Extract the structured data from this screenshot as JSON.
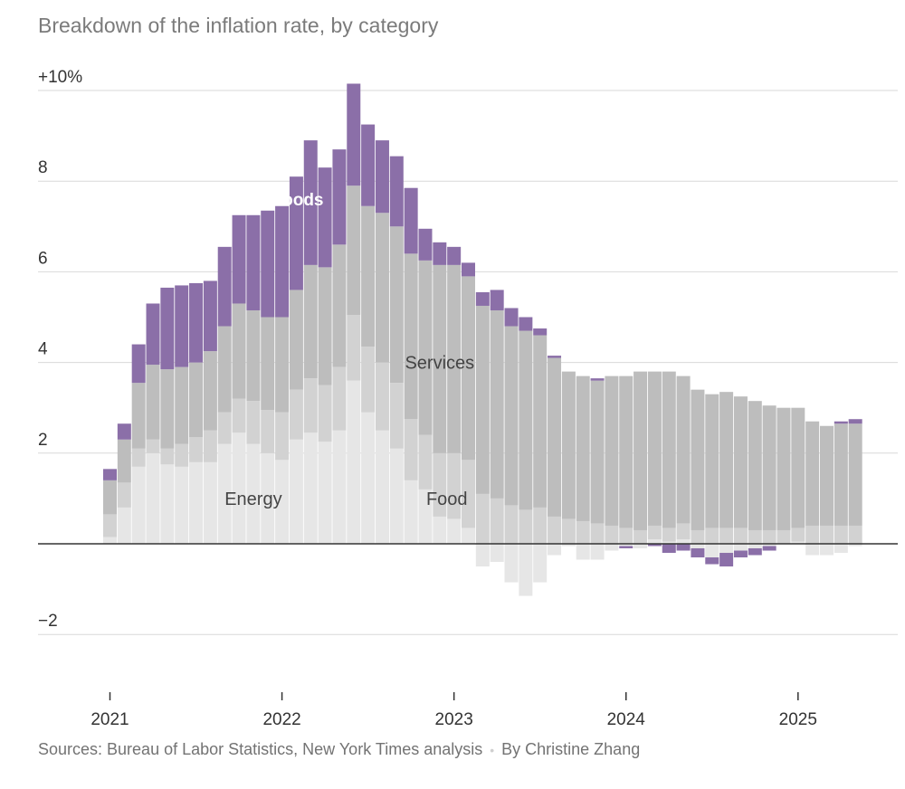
{
  "title": "Breakdown of the inflation rate, by category",
  "footer": {
    "sources": "Sources: Bureau of Labor Statistics, New York Times analysis",
    "separator": "•",
    "byline": "By Christine Zhang"
  },
  "colors": {
    "goods": "#8b6fa8",
    "services": "#bdbdbd",
    "energy": "#e6e6e6",
    "food": "#d2d2d2",
    "grid": "#d9d9d9",
    "zero": "#333333",
    "axis_text": "#333333"
  },
  "chart_data": {
    "type": "bar",
    "stacked": true,
    "title": "Breakdown of the inflation rate, by category",
    "ylabel": "",
    "xlabel": "",
    "ylim": [
      -3,
      10
    ],
    "y_ticks": [
      {
        "value": 10,
        "label": "+10%"
      },
      {
        "value": 8,
        "label": "8"
      },
      {
        "value": 6,
        "label": "6"
      },
      {
        "value": 4,
        "label": "4"
      },
      {
        "value": 2,
        "label": "2"
      },
      {
        "value": -2,
        "label": "−2"
      }
    ],
    "x_ticks": [
      {
        "index": 0,
        "label": "2021"
      },
      {
        "index": 12,
        "label": "2022"
      },
      {
        "index": 24,
        "label": "2023"
      },
      {
        "index": 36,
        "label": "2024"
      },
      {
        "index": 48,
        "label": "2025"
      }
    ],
    "series_labels": [
      {
        "name": "Goods",
        "text": "Goods",
        "index": 13,
        "value": 7.6
      },
      {
        "name": "Services",
        "text": "Services",
        "index": 23,
        "value": 4.0
      },
      {
        "name": "Energy",
        "text": "Energy",
        "index": 10,
        "value": 1.0
      },
      {
        "name": "Food",
        "text": "Food",
        "index": 23.5,
        "value": 1.0
      }
    ],
    "categories": [
      "Jan 2021",
      "Feb 2021",
      "Mar 2021",
      "Apr 2021",
      "May 2021",
      "Jun 2021",
      "Jul 2021",
      "Aug 2021",
      "Sep 2021",
      "Oct 2021",
      "Nov 2021",
      "Dec 2021",
      "Jan 2022",
      "Feb 2022",
      "Mar 2022",
      "Apr 2022",
      "May 2022",
      "Jun 2022",
      "Jul 2022",
      "Aug 2022",
      "Sep 2022",
      "Oct 2022",
      "Nov 2022",
      "Dec 2022",
      "Jan 2023",
      "Feb 2023",
      "Mar 2023",
      "Apr 2023",
      "May 2023",
      "Jun 2023",
      "Jul 2023",
      "Aug 2023",
      "Sep 2023",
      "Oct 2023",
      "Nov 2023",
      "Dec 2023",
      "Jan 2024",
      "Feb 2024",
      "Mar 2024",
      "Apr 2024",
      "May 2024",
      "Jun 2024",
      "Jul 2024",
      "Aug 2024",
      "Sep 2024",
      "Oct 2024",
      "Nov 2024",
      "Dec 2024",
      "Jan 2025",
      "Feb 2025",
      "Mar 2025",
      "Apr 2025",
      "May 2025"
    ],
    "series": [
      {
        "name": "Energy",
        "color_key": "energy",
        "values": [
          0.15,
          0.8,
          1.7,
          2.0,
          1.75,
          1.7,
          1.8,
          1.8,
          2.2,
          2.45,
          2.2,
          2.0,
          1.85,
          2.3,
          2.45,
          2.25,
          2.5,
          3.6,
          2.9,
          2.5,
          2.1,
          1.4,
          1.2,
          0.6,
          0.55,
          0.35,
          -0.5,
          -0.4,
          -0.85,
          -1.15,
          -0.85,
          -0.25,
          -0.05,
          -0.35,
          -0.35,
          -0.15,
          -0.05,
          -0.1,
          0.1,
          0.05,
          0.1,
          -0.1,
          -0.3,
          -0.2,
          -0.15,
          -0.1,
          -0.05,
          0.0,
          0.05,
          -0.25,
          -0.25,
          -0.2,
          -0.05
        ]
      },
      {
        "name": "Food",
        "color_key": "food",
        "values": [
          0.5,
          0.55,
          0.4,
          0.3,
          0.35,
          0.5,
          0.55,
          0.7,
          0.7,
          0.75,
          0.95,
          0.95,
          1.05,
          1.1,
          1.2,
          1.25,
          1.4,
          1.45,
          1.45,
          1.5,
          1.45,
          1.35,
          1.2,
          1.4,
          1.45,
          1.5,
          1.1,
          1.0,
          0.85,
          0.75,
          0.8,
          0.6,
          0.55,
          0.5,
          0.45,
          0.4,
          0.35,
          0.3,
          0.3,
          0.3,
          0.35,
          0.3,
          0.35,
          0.35,
          0.35,
          0.3,
          0.3,
          0.3,
          0.3,
          0.4,
          0.4,
          0.4,
          0.4
        ]
      },
      {
        "name": "Services",
        "color_key": "services",
        "values": [
          0.75,
          0.95,
          1.45,
          1.65,
          1.75,
          1.7,
          1.65,
          1.75,
          1.9,
          2.1,
          2.0,
          2.05,
          2.1,
          2.2,
          2.5,
          2.6,
          2.7,
          2.85,
          3.1,
          3.3,
          3.45,
          3.65,
          3.85,
          4.15,
          4.15,
          4.05,
          4.15,
          4.15,
          3.95,
          3.95,
          3.8,
          3.5,
          3.25,
          3.2,
          3.15,
          3.3,
          3.35,
          3.5,
          3.4,
          3.45,
          3.25,
          3.1,
          2.95,
          3.0,
          2.9,
          2.85,
          2.75,
          2.7,
          2.65,
          2.3,
          2.2,
          2.25,
          2.25
        ]
      },
      {
        "name": "Goods",
        "color_key": "goods",
        "values": [
          0.25,
          0.35,
          0.85,
          1.35,
          1.8,
          1.8,
          1.75,
          1.55,
          1.75,
          1.95,
          2.1,
          2.35,
          2.45,
          2.5,
          2.75,
          2.2,
          2.1,
          2.25,
          1.8,
          1.6,
          1.55,
          1.45,
          0.7,
          0.5,
          0.4,
          0.3,
          0.3,
          0.45,
          0.4,
          0.3,
          0.15,
          0.05,
          0.0,
          0.0,
          0.05,
          0.0,
          -0.05,
          0.0,
          -0.05,
          -0.2,
          -0.15,
          -0.2,
          -0.15,
          -0.3,
          -0.15,
          -0.15,
          -0.1,
          0.0,
          0.0,
          0.0,
          0.0,
          0.05,
          0.1
        ]
      }
    ]
  }
}
